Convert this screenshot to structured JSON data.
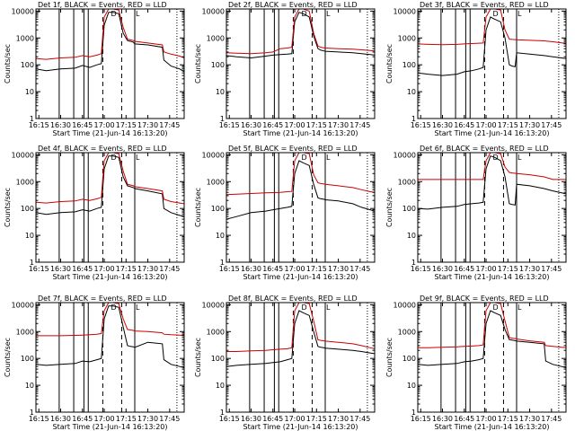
{
  "figure": {
    "colors": {
      "events": "#000000",
      "lld": "#cc0000",
      "marker": "#000000"
    },
    "x_axis": {
      "ticks": [
        {
          "t": 15,
          "label": "16:15"
        },
        {
          "t": 30,
          "label": "16:30"
        },
        {
          "t": 45,
          "label": "16:45"
        },
        {
          "t": 60,
          "label": "17:00"
        },
        {
          "t": 75,
          "label": "17:15"
        },
        {
          "t": 90,
          "label": "17:30"
        },
        {
          "t": 105,
          "label": "17:45"
        }
      ],
      "xlim_minutes_after_1600": [
        13,
        115
      ]
    },
    "y_axis": {
      "scale": "log",
      "ylim": [
        1,
        12000
      ],
      "ticks": [
        {
          "v": 1,
          "label": "1"
        },
        {
          "v": 10,
          "label": "10"
        },
        {
          "v": 100,
          "label": "100"
        },
        {
          "v": 1000,
          "label": "1000"
        },
        {
          "v": 10000,
          "label": "10000"
        }
      ]
    },
    "markers": {
      "solid": [
        29,
        39,
        46,
        49,
        81
      ],
      "dashed": [
        59,
        72
      ],
      "dotted": [
        110
      ],
      "letters": [
        {
          "t": 64,
          "label": "D"
        },
        {
          "t": 81,
          "label": "L"
        }
      ]
    }
  },
  "chart_data": [
    {
      "type": "line",
      "title": "Det 1f, BLACK = Events, RED = LLD",
      "xlabel": "Start Time (21-Jun-14 16:13:20)",
      "ylabel": "Counts/sec",
      "series": [
        {
          "key": "events",
          "x": [
            13,
            20,
            30,
            40,
            45,
            50,
            55,
            58,
            60,
            63,
            66,
            70,
            73,
            76,
            78,
            80,
            81,
            90,
            100,
            101,
            106,
            112,
            115
          ],
          "values": [
            70,
            60,
            70,
            75,
            95,
            80,
            100,
            110,
            3000,
            9000,
            9000,
            8000,
            1500,
            800,
            750,
            700,
            600,
            550,
            450,
            150,
            90,
            70,
            55
          ]
        },
        {
          "key": "lld",
          "x": [
            13,
            20,
            30,
            40,
            45,
            50,
            55,
            58,
            60,
            63,
            66,
            70,
            73,
            76,
            78,
            80,
            81,
            90,
            100,
            101,
            106,
            112,
            115
          ],
          "values": [
            170,
            160,
            180,
            190,
            220,
            200,
            230,
            260,
            6000,
            12000,
            12000,
            11000,
            2500,
            900,
            850,
            800,
            750,
            650,
            550,
            300,
            250,
            210,
            180
          ]
        }
      ]
    },
    {
      "type": "line",
      "title": "Det 2f, BLACK = Events, RED = LLD",
      "xlabel": "Start Time (21-Jun-14 16:13:20)",
      "ylabel": "Counts/sec",
      "series": [
        {
          "key": "events",
          "x": [
            13,
            20,
            30,
            40,
            45,
            50,
            55,
            58,
            60,
            63,
            66,
            70,
            73,
            76,
            78,
            80,
            81,
            90,
            100,
            106,
            112,
            115
          ],
          "values": [
            220,
            200,
            180,
            210,
            230,
            240,
            250,
            260,
            4000,
            9000,
            8000,
            6000,
            1200,
            400,
            350,
            330,
            320,
            300,
            280,
            260,
            240,
            230
          ]
        },
        {
          "key": "lld",
          "x": [
            13,
            20,
            30,
            40,
            45,
            50,
            55,
            58,
            60,
            63,
            66,
            70,
            73,
            76,
            78,
            80,
            81,
            90,
            100,
            106,
            112,
            115
          ],
          "values": [
            280,
            270,
            260,
            280,
            300,
            400,
            420,
            450,
            6000,
            12000,
            12000,
            10000,
            1500,
            500,
            450,
            430,
            420,
            400,
            380,
            360,
            340,
            330
          ]
        }
      ]
    },
    {
      "type": "line",
      "title": "Det 3f, BLACK = Events, RED = LLD",
      "xlabel": "Start Time (21-Jun-14 16:13:20)",
      "ylabel": "Counts/sec",
      "series": [
        {
          "key": "events",
          "x": [
            13,
            20,
            30,
            40,
            45,
            50,
            55,
            58,
            60,
            63,
            66,
            70,
            73,
            76,
            78,
            80,
            81,
            90,
            100,
            106,
            112,
            115
          ],
          "values": [
            50,
            45,
            40,
            45,
            55,
            60,
            70,
            80,
            2000,
            6000,
            5000,
            4000,
            1000,
            100,
            90,
            85,
            280,
            250,
            220,
            200,
            180,
            170
          ]
        },
        {
          "key": "lld",
          "x": [
            13,
            20,
            30,
            40,
            45,
            50,
            55,
            58,
            60,
            63,
            66,
            70,
            73,
            76,
            78,
            80,
            81,
            90,
            100,
            106,
            112,
            115
          ],
          "values": [
            600,
            580,
            560,
            580,
            600,
            620,
            640,
            650,
            6000,
            12000,
            12000,
            11000,
            2000,
            900,
            880,
            870,
            860,
            820,
            780,
            720,
            660,
            620
          ]
        }
      ]
    },
    {
      "type": "line",
      "title": "Det 4f, BLACK = Events, RED = LLD",
      "xlabel": "Start Time (21-Jun-14 16:13:20)",
      "ylabel": "Counts/sec",
      "series": [
        {
          "key": "events",
          "x": [
            13,
            20,
            30,
            40,
            45,
            50,
            55,
            58,
            60,
            63,
            66,
            70,
            73,
            76,
            78,
            80,
            81,
            90,
            100,
            101,
            106,
            112,
            115
          ],
          "values": [
            70,
            60,
            70,
            75,
            90,
            80,
            100,
            110,
            3000,
            9000,
            9000,
            8000,
            1500,
            700,
            650,
            600,
            550,
            450,
            350,
            100,
            70,
            55,
            50
          ]
        },
        {
          "key": "lld",
          "x": [
            13,
            20,
            30,
            40,
            45,
            50,
            55,
            58,
            60,
            63,
            66,
            70,
            73,
            76,
            78,
            80,
            81,
            90,
            100,
            101,
            106,
            112,
            115
          ],
          "values": [
            170,
            160,
            180,
            190,
            220,
            200,
            230,
            260,
            6000,
            12000,
            12000,
            11000,
            2500,
            800,
            750,
            700,
            650,
            550,
            450,
            220,
            180,
            160,
            150
          ]
        }
      ]
    },
    {
      "type": "line",
      "title": "Det 5f, BLACK = Events, RED = LLD",
      "xlabel": "Start Time (21-Jun-14 16:13:20)",
      "ylabel": "Counts/sec",
      "series": [
        {
          "key": "events",
          "x": [
            13,
            20,
            30,
            40,
            45,
            50,
            55,
            58,
            60,
            63,
            66,
            70,
            73,
            76,
            78,
            80,
            81,
            90,
            100,
            106,
            112,
            115
          ],
          "values": [
            40,
            50,
            70,
            80,
            90,
            100,
            110,
            120,
            2000,
            6000,
            5000,
            4000,
            800,
            250,
            230,
            220,
            210,
            190,
            150,
            110,
            90,
            80
          ]
        },
        {
          "key": "lld",
          "x": [
            13,
            20,
            30,
            40,
            45,
            50,
            55,
            58,
            60,
            63,
            66,
            70,
            73,
            76,
            78,
            80,
            81,
            90,
            100,
            106,
            112,
            115
          ],
          "values": [
            330,
            340,
            360,
            380,
            390,
            400,
            420,
            430,
            6000,
            12000,
            12000,
            11000,
            1800,
            900,
            850,
            820,
            800,
            700,
            600,
            500,
            420,
            400
          ]
        }
      ]
    },
    {
      "type": "line",
      "title": "Det 6f, BLACK = Events, RED = LLD",
      "xlabel": "Start Time (21-Jun-14 16:13:20)",
      "ylabel": "Counts/sec",
      "series": [
        {
          "key": "events",
          "x": [
            13,
            20,
            30,
            40,
            45,
            50,
            55,
            58,
            60,
            63,
            66,
            70,
            73,
            76,
            78,
            80,
            81,
            90,
            100,
            106,
            112,
            115
          ],
          "values": [
            100,
            95,
            110,
            120,
            140,
            150,
            160,
            170,
            3000,
            9000,
            8000,
            6000,
            1500,
            150,
            140,
            135,
            800,
            700,
            550,
            450,
            380,
            350
          ]
        },
        {
          "key": "lld",
          "x": [
            13,
            20,
            30,
            40,
            45,
            50,
            55,
            58,
            60,
            63,
            66,
            70,
            73,
            76,
            78,
            80,
            81,
            90,
            100,
            106,
            112,
            115
          ],
          "values": [
            1200,
            1200,
            1200,
            1200,
            1200,
            1200,
            1200,
            1200,
            6000,
            12000,
            12000,
            11000,
            3500,
            2200,
            2100,
            2050,
            2000,
            1800,
            1500,
            1200,
            1200,
            1200
          ]
        }
      ]
    },
    {
      "type": "line",
      "title": "Det 7f, BLACK = Events, RED = LLD",
      "xlabel": "Start Time (21-Jun-14 16:13:20)",
      "ylabel": "Counts/sec",
      "series": [
        {
          "key": "events",
          "x": [
            13,
            20,
            30,
            40,
            45,
            50,
            55,
            58,
            60,
            63,
            66,
            70,
            73,
            76,
            78,
            80,
            81,
            90,
            100,
            101,
            106,
            112,
            115
          ],
          "values": [
            60,
            55,
            60,
            65,
            80,
            75,
            90,
            100,
            3000,
            9000,
            9000,
            8000,
            1500,
            300,
            280,
            270,
            260,
            400,
            350,
            90,
            60,
            50,
            45
          ]
        },
        {
          "key": "lld",
          "x": [
            13,
            20,
            30,
            40,
            45,
            50,
            55,
            58,
            60,
            63,
            66,
            70,
            73,
            76,
            78,
            80,
            81,
            90,
            100,
            101,
            106,
            112,
            115
          ],
          "values": [
            700,
            700,
            700,
            720,
            740,
            760,
            800,
            850,
            6000,
            12000,
            12000,
            11000,
            3000,
            1200,
            1150,
            1100,
            1050,
            1000,
            900,
            800,
            760,
            740,
            720
          ]
        }
      ]
    },
    {
      "type": "line",
      "title": "Det 8f, BLACK = Events, RED = LLD",
      "xlabel": "Start Time (21-Jun-14 16:13:20)",
      "ylabel": "Counts/sec",
      "series": [
        {
          "key": "events",
          "x": [
            13,
            20,
            30,
            40,
            45,
            50,
            55,
            58,
            60,
            63,
            66,
            70,
            73,
            76,
            78,
            80,
            81,
            90,
            100,
            106,
            112,
            115
          ],
          "values": [
            50,
            55,
            60,
            65,
            70,
            75,
            90,
            100,
            2000,
            6000,
            5000,
            4000,
            1000,
            280,
            260,
            250,
            240,
            220,
            200,
            180,
            160,
            150
          ]
        },
        {
          "key": "lld",
          "x": [
            13,
            20,
            30,
            40,
            45,
            50,
            55,
            58,
            60,
            63,
            66,
            70,
            73,
            76,
            78,
            80,
            81,
            90,
            100,
            106,
            112,
            115
          ],
          "values": [
            180,
            180,
            190,
            200,
            210,
            220,
            230,
            250,
            6000,
            12000,
            12000,
            11000,
            2500,
            500,
            470,
            450,
            440,
            400,
            350,
            300,
            250,
            230
          ]
        }
      ]
    },
    {
      "type": "line",
      "title": "Det 9f, BLACK = Events, RED = LLD",
      "xlabel": "Start Time (21-Jun-14 16:13:20)",
      "ylabel": "Counts/sec",
      "series": [
        {
          "key": "events",
          "x": [
            13,
            20,
            30,
            40,
            45,
            50,
            55,
            58,
            60,
            63,
            66,
            70,
            73,
            76,
            78,
            80,
            81,
            90,
            100,
            101,
            106,
            112,
            115
          ],
          "values": [
            60,
            55,
            60,
            65,
            75,
            80,
            90,
            100,
            2000,
            6000,
            5000,
            4000,
            1200,
            500,
            480,
            460,
            440,
            400,
            350,
            80,
            60,
            50,
            45
          ]
        },
        {
          "key": "lld",
          "x": [
            13,
            20,
            30,
            40,
            45,
            50,
            55,
            58,
            60,
            63,
            66,
            70,
            73,
            76,
            78,
            80,
            81,
            90,
            100,
            101,
            106,
            112,
            115
          ],
          "values": [
            250,
            250,
            260,
            270,
            280,
            290,
            300,
            320,
            6000,
            12000,
            12000,
            11000,
            2500,
            600,
            570,
            550,
            530,
            450,
            400,
            300,
            280,
            260,
            250
          ]
        }
      ]
    }
  ]
}
